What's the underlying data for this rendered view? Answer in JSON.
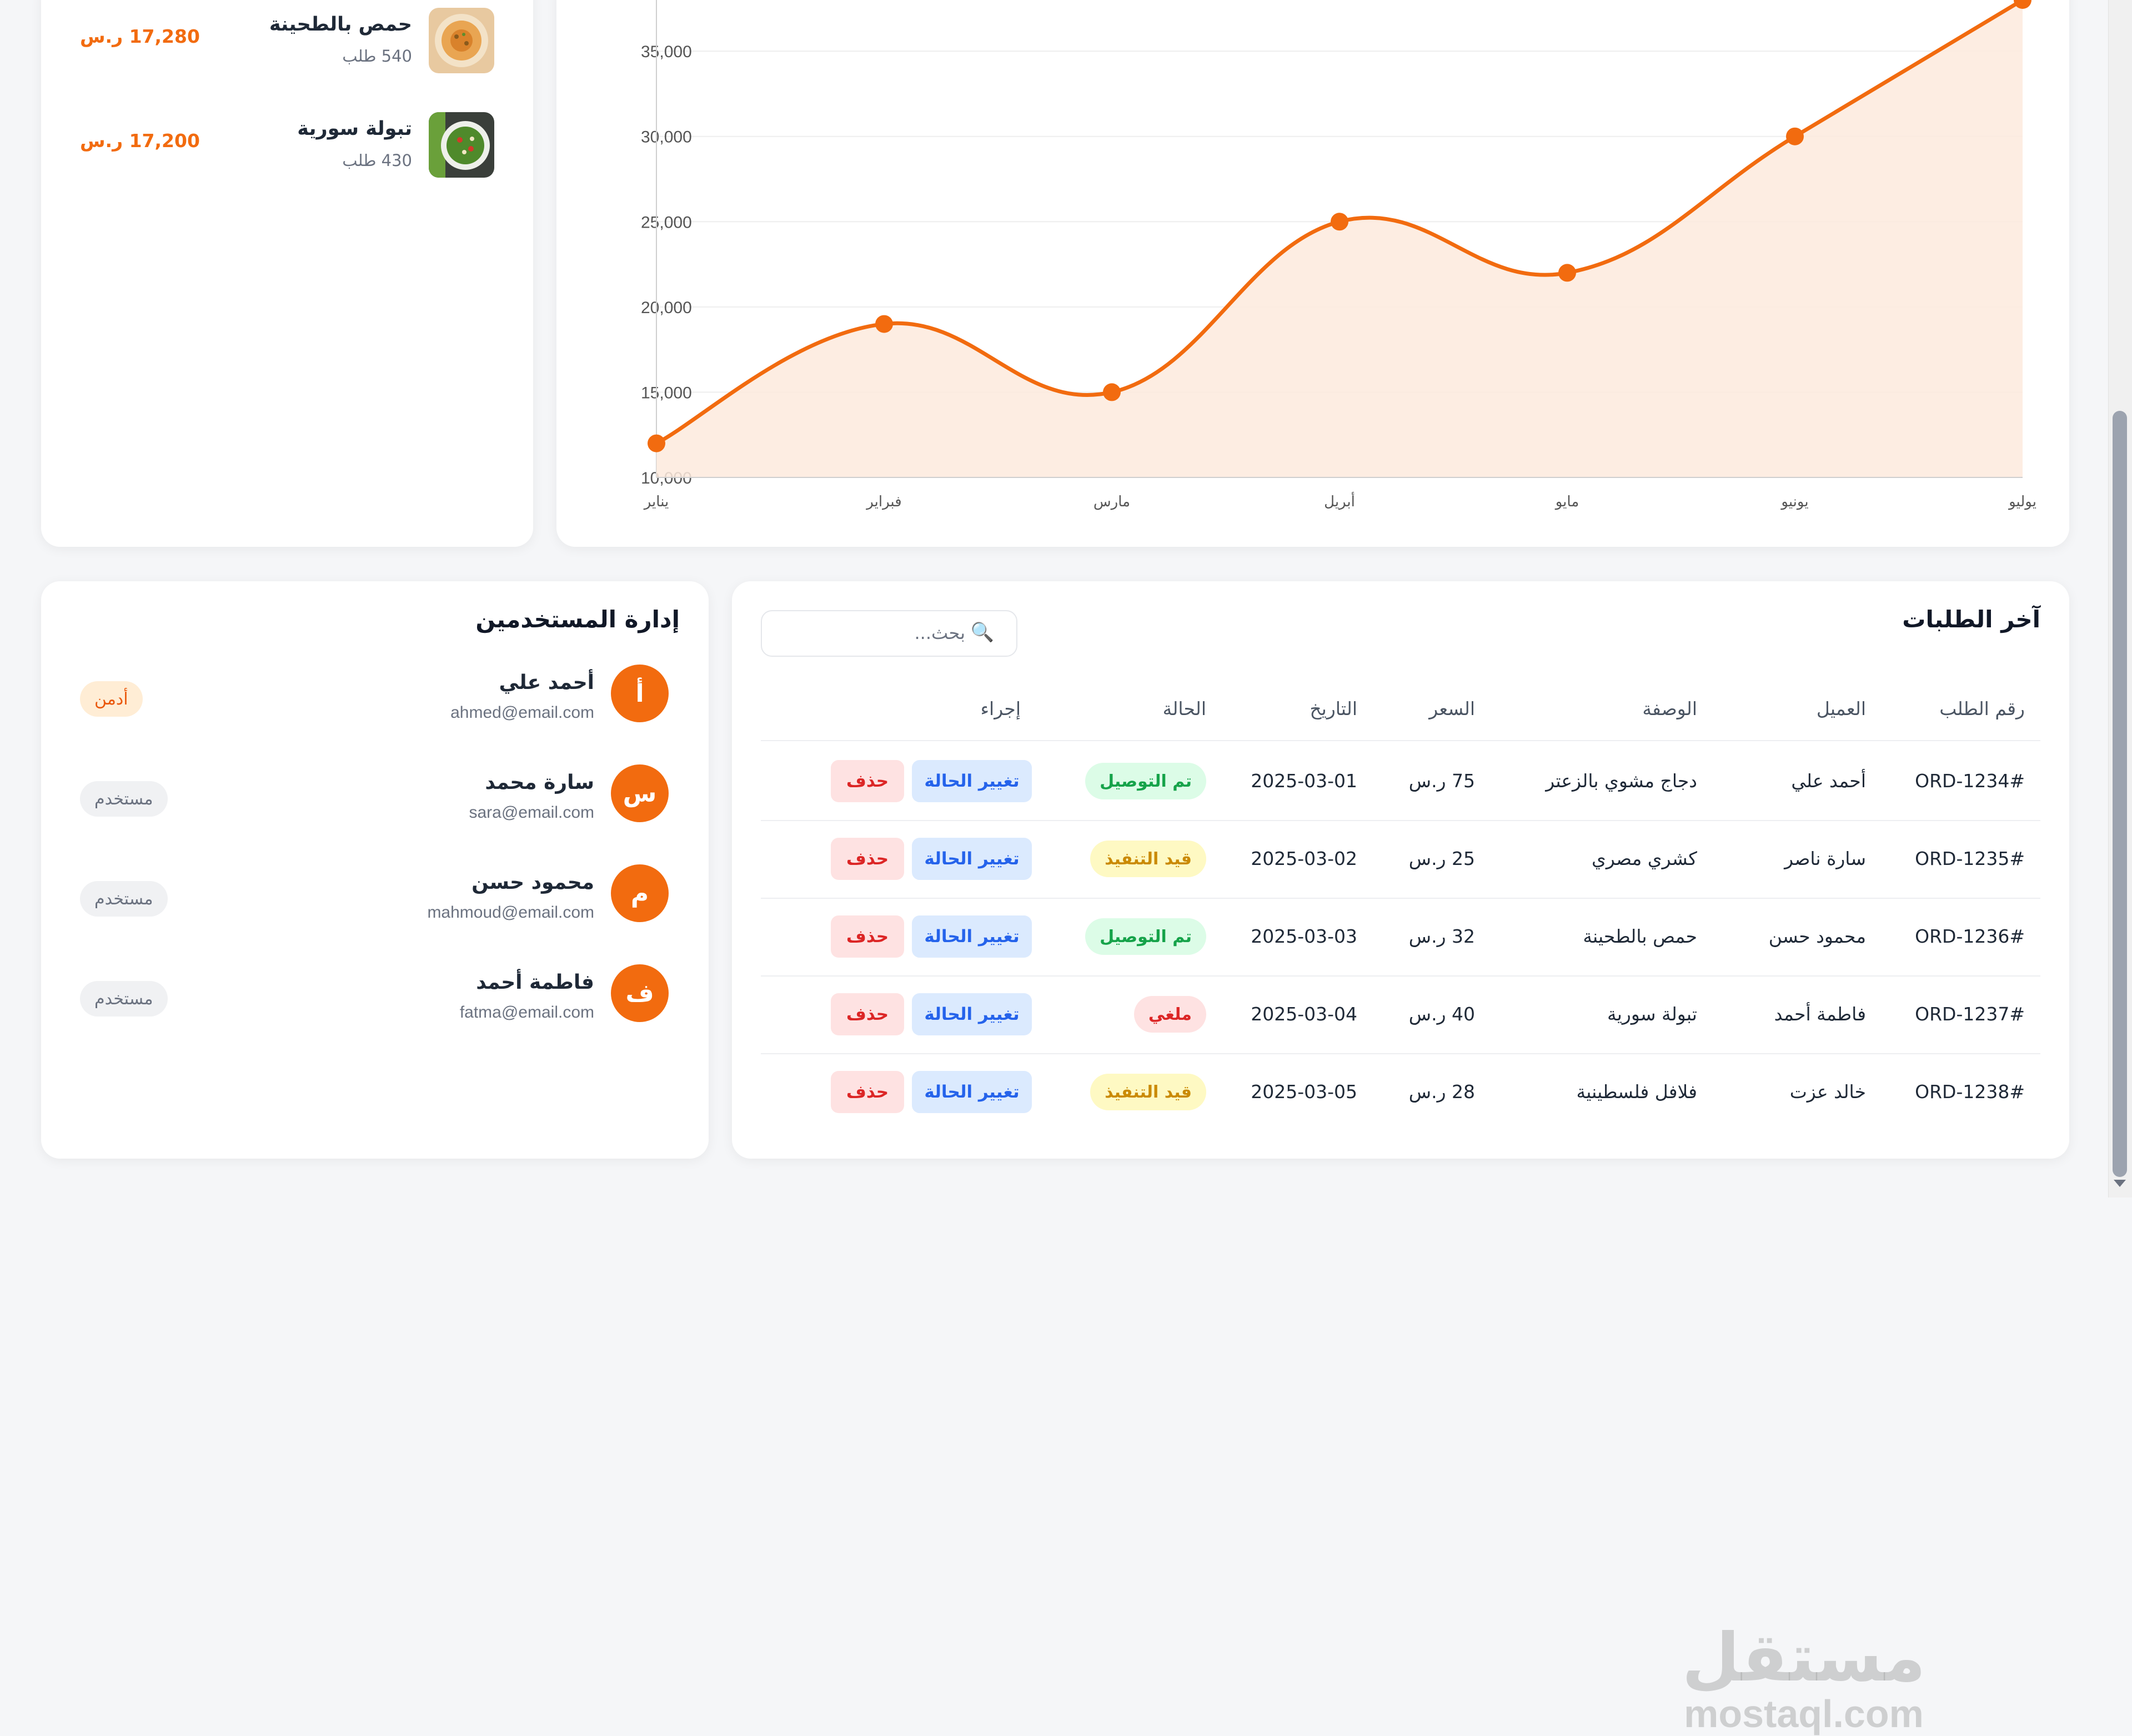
{
  "top_products": [
    {
      "name": "حمص بالطحينة",
      "count": "540 طلب",
      "amount": "17,280 ر.س",
      "icon": "hummus-dish-image"
    },
    {
      "name": "تبولة سورية",
      "count": "430 طلب",
      "amount": "17,200 ر.س",
      "icon": "tabbouleh-salad-image"
    }
  ],
  "colors": {
    "accent": "#f26b0f",
    "chart_fill": "#fdeadd",
    "chart_grid": "#eeeeee"
  },
  "chart_data": {
    "type": "area",
    "categories": [
      "يناير",
      "فبراير",
      "مارس",
      "أبريل",
      "مايو",
      "يونيو",
      "يوليو"
    ],
    "values": [
      12000,
      19000,
      15000,
      25000,
      22000,
      30000,
      38000
    ],
    "yticks": [
      "10,000",
      "15,000",
      "20,000",
      "25,000",
      "30,000",
      "35,000"
    ],
    "ylim": [
      10000,
      38000
    ],
    "title": "",
    "xlabel": "",
    "ylabel": "",
    "grid": true,
    "smooth": true
  },
  "users": {
    "title": "إدارة المستخدمين",
    "items": [
      {
        "initial": "أ",
        "name": "أحمد علي",
        "email": "ahmed@email.com",
        "role": "أدمن",
        "role_type": "admin"
      },
      {
        "initial": "س",
        "name": "سارة محمد",
        "email": "sara@email.com",
        "role": "مستخدم",
        "role_type": "user"
      },
      {
        "initial": "م",
        "name": "محمود حسن",
        "email": "mahmoud@email.com",
        "role": "مستخدم",
        "role_type": "user"
      },
      {
        "initial": "ف",
        "name": "فاطمة أحمد",
        "email": "fatma@email.com",
        "role": "مستخدم",
        "role_type": "user"
      }
    ]
  },
  "orders": {
    "title": "آخر الطلبات",
    "search_placeholder": "بحث...",
    "headers": {
      "id": "رقم الطلب",
      "customer": "العميل",
      "description": "الوصفة",
      "price": "السعر",
      "date": "التاريخ",
      "status": "الحالة",
      "action": "إجراء"
    },
    "change_label": "تغيير الحالة",
    "delete_label": "حذف",
    "rows": [
      {
        "id": "ORD-1234#",
        "customer": "أحمد علي",
        "description": "دجاج مشوي بالزعتر",
        "price": "75 ر.س",
        "date": "2025-03-01",
        "status": "تم التوصيل",
        "status_type": "green"
      },
      {
        "id": "ORD-1235#",
        "customer": "سارة ناصر",
        "description": "كشري مصري",
        "price": "25 ر.س",
        "date": "2025-03-02",
        "status": "قيد التنفيذ",
        "status_type": "yellow"
      },
      {
        "id": "ORD-1236#",
        "customer": "محمود حسن",
        "description": "حمص بالطحينة",
        "price": "32 ر.س",
        "date": "2025-03-03",
        "status": "تم التوصيل",
        "status_type": "green"
      },
      {
        "id": "ORD-1237#",
        "customer": "فاطمة أحمد",
        "description": "تبولة سورية",
        "price": "40 ر.س",
        "date": "2025-03-04",
        "status": "ملغي",
        "status_type": "red"
      },
      {
        "id": "ORD-1238#",
        "customer": "خالد عزت",
        "description": "فلافل فلسطينية",
        "price": "28 ر.س",
        "date": "2025-03-05",
        "status": "قيد التنفيذ",
        "status_type": "yellow"
      }
    ]
  },
  "watermark": {
    "arabic": "مستقل",
    "latin": "mostaql.com"
  }
}
